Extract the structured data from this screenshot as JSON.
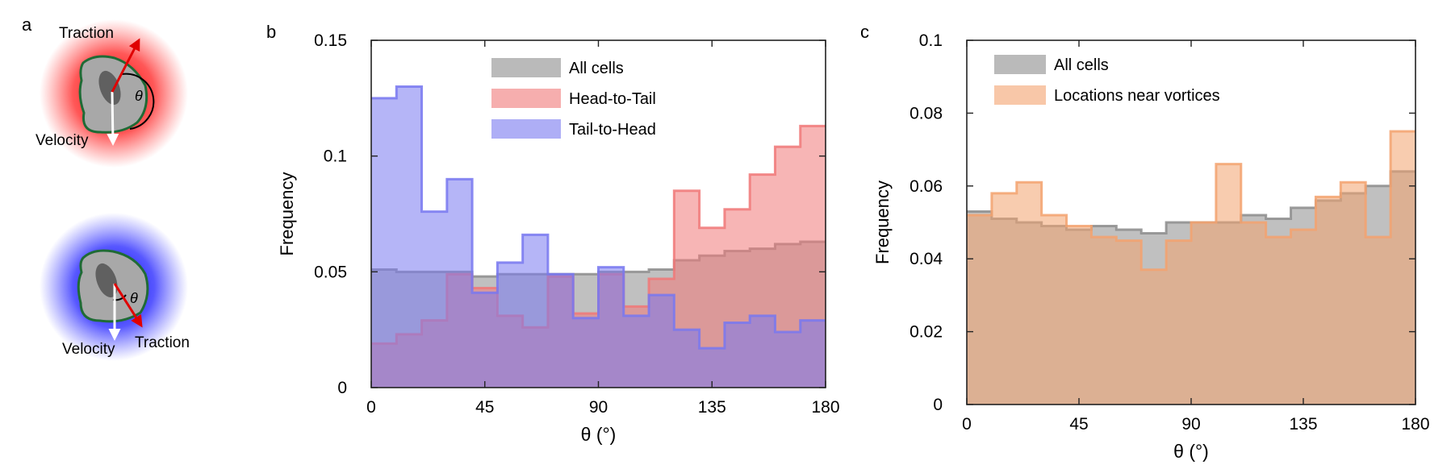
{
  "panel_a": {
    "label": "a",
    "top": {
      "traction_label": "Traction",
      "velocity_label": "Velocity",
      "angle_label": "θ",
      "glow_color": "#ff0000"
    },
    "bottom": {
      "traction_label": "Traction",
      "velocity_label": "Velocity",
      "angle_label": "θ",
      "glow_color": "#0000ff"
    }
  },
  "chart_data": [
    {
      "panel_label": "b",
      "type": "histogram",
      "xlabel": "θ (°)",
      "ylabel": "Frequency",
      "xlim": [
        0,
        180
      ],
      "ylim": [
        0,
        0.15
      ],
      "xticks": [
        "0",
        "45",
        "90",
        "135",
        "180"
      ],
      "yticks": [
        "0",
        "0.05",
        "0.1",
        "0.15"
      ],
      "bin_edges": [
        0,
        10,
        20,
        30,
        40,
        50,
        60,
        70,
        80,
        90,
        100,
        110,
        120,
        130,
        140,
        150,
        160,
        170,
        180
      ],
      "legend_position": "top-center",
      "series": [
        {
          "name": "All cells",
          "color": "#8c8c8c",
          "values": [
            0.051,
            0.05,
            0.05,
            0.05,
            0.048,
            0.049,
            0.049,
            0.049,
            0.049,
            0.05,
            0.05,
            0.051,
            0.055,
            0.057,
            0.059,
            0.06,
            0.062,
            0.063
          ]
        },
        {
          "name": "Head-to-Tail",
          "color": "#f07878",
          "values": [
            0.019,
            0.023,
            0.029,
            0.049,
            0.043,
            0.031,
            0.026,
            0.048,
            0.032,
            0.049,
            0.035,
            0.047,
            0.085,
            0.069,
            0.077,
            0.092,
            0.104,
            0.113
          ]
        },
        {
          "name": "Tail-to-Head",
          "color": "#7878f0",
          "values": [
            0.125,
            0.13,
            0.076,
            0.09,
            0.041,
            0.054,
            0.066,
            0.049,
            0.03,
            0.052,
            0.031,
            0.04,
            0.025,
            0.017,
            0.028,
            0.031,
            0.024,
            0.029
          ]
        }
      ]
    },
    {
      "panel_label": "c",
      "type": "histogram",
      "xlabel": "θ (°)",
      "ylabel": "Frequency",
      "xlim": [
        0,
        180
      ],
      "ylim": [
        0,
        0.1
      ],
      "xticks": [
        "0",
        "45",
        "90",
        "135",
        "180"
      ],
      "yticks": [
        "0",
        "0.02",
        "0.04",
        "0.06",
        "0.08",
        "0.1"
      ],
      "bin_edges": [
        0,
        10,
        20,
        30,
        40,
        50,
        60,
        70,
        80,
        90,
        100,
        110,
        120,
        130,
        140,
        150,
        160,
        170,
        180
      ],
      "legend_position": "top-left",
      "series": [
        {
          "name": "All cells",
          "color": "#8c8c8c",
          "values": [
            0.053,
            0.051,
            0.05,
            0.049,
            0.048,
            0.049,
            0.048,
            0.047,
            0.05,
            0.05,
            0.05,
            0.052,
            0.051,
            0.054,
            0.056,
            0.058,
            0.06,
            0.064
          ]
        },
        {
          "name": "Locations near vortices",
          "color": "#f3a26e",
          "values": [
            0.052,
            0.058,
            0.061,
            0.052,
            0.049,
            0.046,
            0.045,
            0.037,
            0.045,
            0.05,
            0.066,
            0.05,
            0.046,
            0.048,
            0.057,
            0.061,
            0.046,
            0.075
          ]
        }
      ]
    }
  ]
}
